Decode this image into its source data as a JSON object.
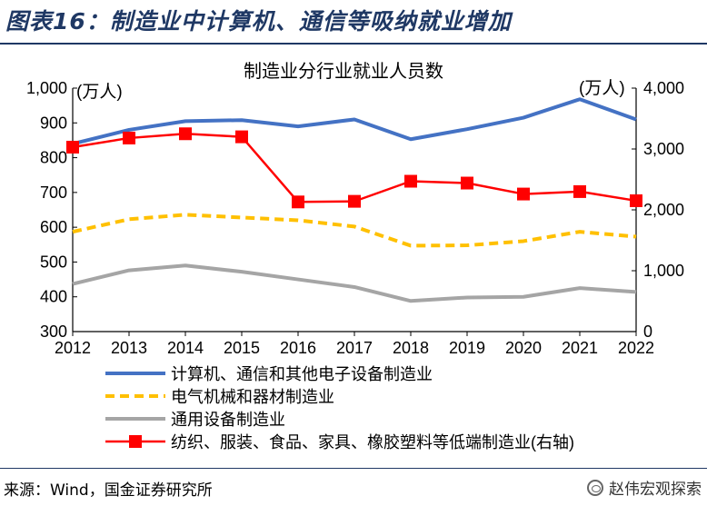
{
  "figure_title": "图表16：制造业中计算机、通信等吸纳就业增加",
  "source": "来源：Wind，国金证券研究所",
  "watermark": "赵伟宏观探索",
  "chart_data": {
    "type": "line",
    "title": "制造业分行业就业人员数",
    "y_left_unit": "(万人)",
    "y_right_unit": "(万人)",
    "x": [
      "2012",
      "2013",
      "2014",
      "2015",
      "2016",
      "2017",
      "2018",
      "2019",
      "2020",
      "2021",
      "2022"
    ],
    "ylim_left": [
      300,
      1000
    ],
    "yticks_left": [
      "300",
      "400",
      "500",
      "600",
      "700",
      "800",
      "900",
      "1,000"
    ],
    "ylim_right": [
      0,
      4000
    ],
    "yticks_right": [
      "0",
      "1,000",
      "2,000",
      "3,000",
      "4,000"
    ],
    "grid": false,
    "legend_position": "bottom",
    "series": [
      {
        "name": "计算机、通信和其他电子设备制造业",
        "axis": "left",
        "style": "solid",
        "color": "#4472c4",
        "values": [
          840,
          880,
          905,
          908,
          890,
          910,
          853,
          882,
          915,
          968,
          910
        ]
      },
      {
        "name": "电气机械和器材制造业",
        "axis": "left",
        "style": "dashed",
        "color": "#ffc000",
        "values": [
          587,
          623,
          636,
          628,
          620,
          602,
          547,
          548,
          560,
          587,
          573
        ]
      },
      {
        "name": "通用设备制造业",
        "axis": "left",
        "style": "solid",
        "color": "#a5a5a5",
        "values": [
          437,
          476,
          490,
          472,
          450,
          428,
          388,
          398,
          400,
          425,
          414
        ]
      },
      {
        "name": "纺织、服装、食品、家具、橡胶塑料等低端制造业(右轴)",
        "axis": "right",
        "style": "marker",
        "color": "#ff0000",
        "values": [
          3030,
          3180,
          3250,
          3200,
          2130,
          2140,
          2470,
          2440,
          2260,
          2300,
          2150
        ]
      }
    ]
  }
}
